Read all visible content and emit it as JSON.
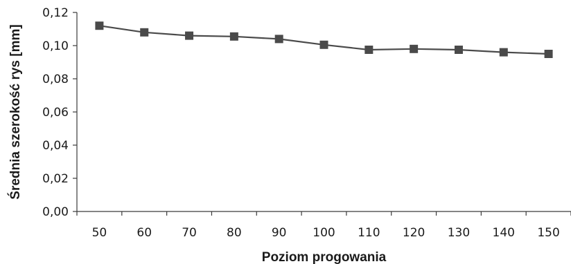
{
  "chart_data": {
    "type": "line",
    "title": "",
    "xlabel": "Poziom progowania",
    "ylabel": "Średnia szerokość rys [mm]",
    "categories": [
      "50",
      "60",
      "70",
      "80",
      "90",
      "100",
      "110",
      "120",
      "130",
      "140",
      "150"
    ],
    "series": [
      {
        "values": [
          0.112,
          0.108,
          0.106,
          0.1055,
          0.104,
          0.1005,
          0.0975,
          0.098,
          0.0975,
          0.096,
          0.095
        ],
        "color": "#4a4a4a",
        "marker": "square"
      }
    ],
    "ylim": [
      0,
      0.12
    ],
    "yticks": [
      "0,00",
      "0,02",
      "0,04",
      "0,06",
      "0,08",
      "0,10",
      "0,12"
    ],
    "grid": false,
    "legend": "none"
  }
}
